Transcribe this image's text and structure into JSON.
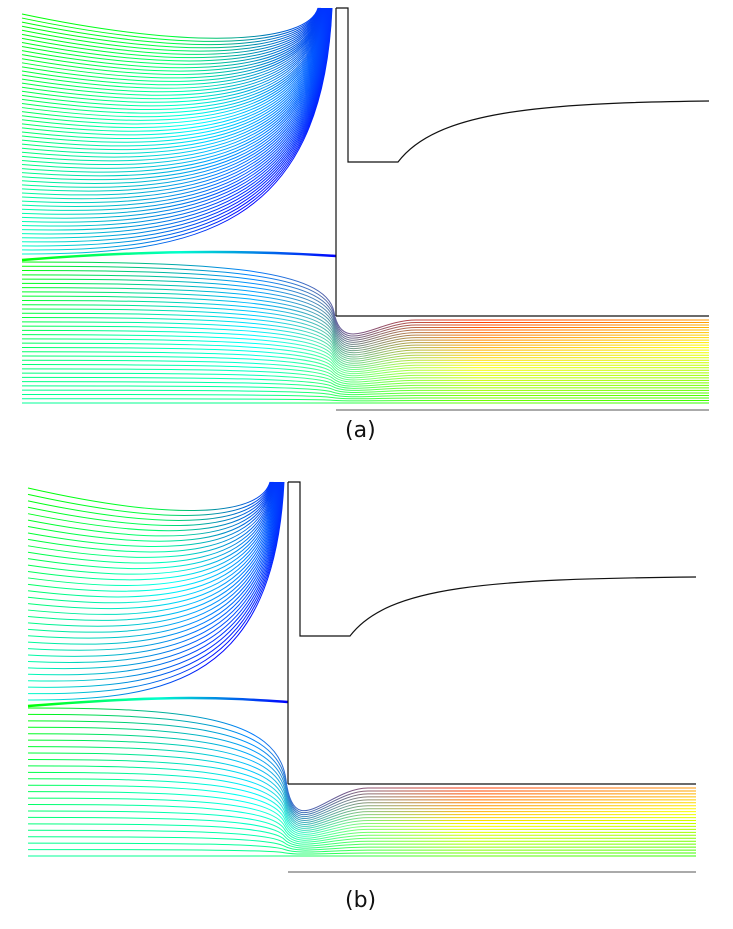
{
  "panels": [
    {
      "id": "a",
      "caption": "(a)"
    },
    {
      "id": "b",
      "caption": "(b)"
    }
  ],
  "colormap": [
    "#0000ff",
    "#0080ff",
    "#00ffff",
    "#00ff80",
    "#00ff00",
    "#80ff00",
    "#ffff00",
    "#ff8000",
    "#ff0000"
  ],
  "wall_color": "#111111"
}
